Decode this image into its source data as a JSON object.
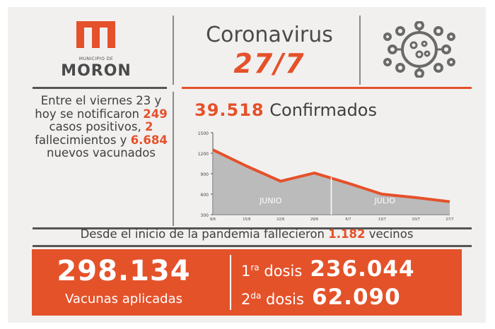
{
  "logo": {
    "subtitle": "MUNICIPIO DE",
    "name": "MORON"
  },
  "header": {
    "title": "Coronavirus",
    "date": "27/7"
  },
  "summary": {
    "text_1": "Entre el viernes 23 y hoy se notificaron",
    "cases": "249",
    "text_2": "casos positivos,",
    "deaths": "2",
    "text_3": "fallecimientos y",
    "vaccinated": "6.684",
    "text_4": "nuevos vacunados"
  },
  "confirmed": {
    "value": "39.518",
    "label": "Confirmados"
  },
  "chart_data": {
    "type": "area",
    "y_ticks": [
      "1500",
      "1200",
      "900",
      "600",
      "300"
    ],
    "ylim": [
      300,
      1500
    ],
    "x_ticks": [
      "8/6",
      "15/6",
      "22/6",
      "29/6",
      "6/7",
      "13/7",
      "20/7",
      "27/7"
    ],
    "regions": [
      "JUNIO",
      "JULIO"
    ],
    "x": [
      "8/6",
      "15/6",
      "22/6",
      "29/6",
      "6/7",
      "13/7",
      "20/7",
      "27/7"
    ],
    "values": [
      1250,
      1010,
      790,
      910,
      760,
      600,
      550,
      490
    ],
    "colors": {
      "line": "#e5512a",
      "fill": "#a9a9a9"
    }
  },
  "deaths_total": {
    "text_before": "Desde el inicio de la pandemia fallecieron",
    "value": "1.182",
    "text_after": "vecinos"
  },
  "vaccines": {
    "total": "298.134",
    "total_label": "Vacunas aplicadas",
    "dose1_num": "1",
    "dose1_sup": "ra",
    "dose1_word": "dosis",
    "dose1_value": "236.044",
    "dose2_num": "2",
    "dose2_sup": "da",
    "dose2_word": "dosis",
    "dose2_value": "62.090"
  }
}
